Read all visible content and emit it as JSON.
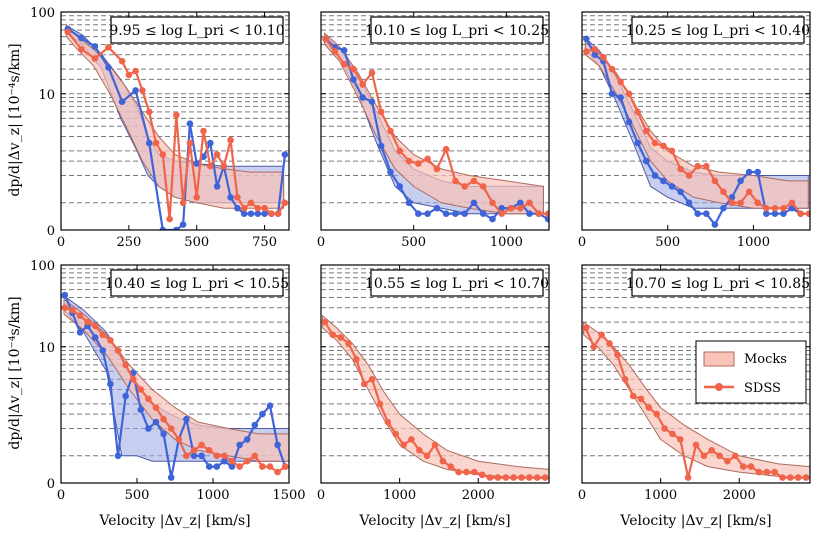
{
  "figure": {
    "ylabel": "dp/d|Δv_z| [10⁻⁴s/km]",
    "xlabel": "Velocity |Δv_z| [km/s]",
    "legend": {
      "entries": [
        {
          "label": "Mocks",
          "color": "#f4a090"
        },
        {
          "label": "SDSS",
          "color": "#f0644a"
        }
      ],
      "placement": "inside middle-right of the bottom-right panel"
    },
    "colors": {
      "sdss": "#f0644a",
      "sdss_fill": "#f4a090",
      "blue_line": "#3f64d8",
      "blue_fill": "#9aa6e3",
      "grid": "#7a7a7a"
    }
  },
  "chart_data": [
    {
      "type": "line",
      "title": "9.95 ≤ log L_pri < 10.10",
      "xlim": [
        0,
        840
      ],
      "xticks": [
        0,
        250,
        500,
        750
      ],
      "xtick_labels": [
        "0",
        "250",
        "500",
        "750"
      ],
      "ylim": [
        0,
        100
      ],
      "yscale": "symlog",
      "yticks": [
        0,
        10,
        100
      ],
      "ytick_labels": [
        "0",
        "10",
        "100"
      ],
      "grid": "horizontal dashed",
      "series": [
        {
          "name": "SDSS",
          "x": [
            25,
            75,
            125,
            175,
            225,
            250,
            275,
            300,
            325,
            350,
            375,
            400,
            425,
            450,
            475,
            500,
            525,
            550,
            575,
            600,
            625,
            650,
            675,
            700,
            725,
            750,
            775,
            800,
            825
          ],
          "y": [
            57,
            35,
            27,
            37,
            25,
            17,
            19,
            11,
            6,
            2.5,
            1.8,
            0.2,
            5.5,
            0.5,
            2.5,
            0.6,
            3.5,
            1.3,
            1.8,
            1.3,
            2.7,
            0.6,
            0.4,
            0.5,
            0.4,
            0.4,
            0.3,
            0.3,
            0.5
          ]
        },
        {
          "name": "",
          "x": [
            25,
            75,
            125,
            175,
            225,
            275,
            325,
            375,
            425,
            450,
            475,
            500,
            525,
            550,
            575,
            600,
            625,
            650,
            675,
            700,
            725,
            750,
            775,
            800,
            825
          ],
          "y": [
            62,
            48,
            38,
            21,
            8,
            11,
            2.5,
            0,
            0,
            0.1,
            4.3,
            1.4,
            1.7,
            2.5,
            0.8,
            1.3,
            0.6,
            0.4,
            0.3,
            0.3,
            0.3,
            0.3,
            0.3,
            0.3,
            1.8
          ]
        }
      ],
      "mocks_band": {
        "x": [
          20,
          60,
          120,
          180,
          240,
          300,
          360,
          420,
          500,
          600,
          700,
          820
        ],
        "lower": [
          50,
          35,
          22,
          10,
          4,
          1.5,
          0.8,
          0.6,
          0.5,
          0.4,
          0.4,
          0.4
        ],
        "upper": [
          70,
          50,
          35,
          22,
          12,
          6,
          3,
          1.8,
          1.4,
          1.2,
          1.1,
          1.1
        ]
      },
      "blue_band": {
        "x": [
          20,
          80,
          150,
          220,
          280,
          320,
          360,
          420,
          500,
          600,
          700,
          820
        ],
        "lower": [
          55,
          40,
          20,
          5,
          2,
          1,
          0.8,
          0.6,
          0.5,
          0.5,
          0.5,
          0.5
        ],
        "upper": [
          68,
          52,
          30,
          15,
          7,
          3,
          1.8,
          1.5,
          1.4,
          1.3,
          1.3,
          1.3
        ]
      }
    },
    {
      "type": "line",
      "title": "10.10 ≤ log L_pri < 10.25",
      "xlim": [
        0,
        1230
      ],
      "xticks": [
        0,
        500,
        1000
      ],
      "xtick_labels": [
        "0",
        "500",
        "1000"
      ],
      "ylim": [
        0,
        100
      ],
      "yscale": "symlog",
      "yticks": [
        0,
        10,
        100
      ],
      "ytick_labels": [],
      "grid": "horizontal dashed",
      "series": [
        {
          "name": "SDSS",
          "x": [
            25,
            75,
            125,
            175,
            225,
            275,
            325,
            375,
            425,
            475,
            525,
            575,
            625,
            675,
            725,
            775,
            825,
            875,
            925,
            975,
            1025,
            1075,
            1125,
            1175,
            1225
          ],
          "y": [
            47,
            33,
            23,
            20,
            13,
            18,
            6,
            3.5,
            2,
            1.5,
            1.4,
            1.6,
            1.2,
            2.1,
            0.9,
            0.8,
            0.9,
            0.8,
            0.5,
            0.3,
            0.4,
            0.4,
            0.5,
            0.3,
            0.3
          ]
        },
        {
          "name": "",
          "x": [
            25,
            75,
            125,
            175,
            225,
            275,
            325,
            375,
            425,
            475,
            525,
            575,
            625,
            675,
            725,
            775,
            825,
            875,
            925,
            975,
            1025,
            1075,
            1125,
            1175,
            1225
          ],
          "y": [
            47,
            37,
            34,
            15,
            9,
            8,
            2.3,
            1.1,
            0.8,
            0.5,
            0.3,
            0.3,
            0.4,
            0.3,
            0.3,
            0.3,
            0.5,
            0.3,
            0.2,
            0.4,
            0.4,
            0.5,
            0.3,
            0.3,
            0.2
          ]
        }
      ],
      "mocks_band": {
        "x": [
          20,
          100,
          200,
          300,
          400,
          500,
          650,
          800,
          1000,
          1200
        ],
        "lower": [
          40,
          25,
          9,
          3,
          1.2,
          0.8,
          0.5,
          0.4,
          0.3,
          0.3
        ],
        "upper": [
          55,
          38,
          18,
          7,
          3,
          1.8,
          1.2,
          1,
          0.9,
          0.8
        ]
      },
      "blue_band": {
        "x": [
          20,
          100,
          200,
          300,
          400,
          500,
          650,
          800,
          1000,
          1200
        ],
        "lower": [
          42,
          28,
          10,
          2.5,
          0.8,
          0.5,
          0.4,
          0.3,
          0.3,
          0.3
        ],
        "upper": [
          52,
          36,
          17,
          6,
          2,
          1.2,
          0.9,
          0.8,
          0.8,
          0.8
        ]
      }
    },
    {
      "type": "line",
      "title": "10.25 ≤ log L_pri < 10.40",
      "xlim": [
        0,
        1330
      ],
      "xticks": [
        0,
        500,
        1000
      ],
      "xtick_labels": [
        "0",
        "500",
        "1000"
      ],
      "ylim": [
        0,
        100
      ],
      "yscale": "symlog",
      "yticks": [
        0,
        10,
        100
      ],
      "ytick_labels": [],
      "grid": "horizontal dashed",
      "series": [
        {
          "name": "SDSS",
          "x": [
            25,
            75,
            125,
            175,
            225,
            275,
            325,
            375,
            425,
            475,
            525,
            575,
            625,
            675,
            725,
            775,
            825,
            875,
            925,
            975,
            1025,
            1075,
            1125,
            1175,
            1225,
            1275,
            1325
          ],
          "y": [
            33,
            35,
            28,
            20,
            14,
            10,
            6,
            3.5,
            2.5,
            2.3,
            2,
            1.2,
            1.0,
            1.3,
            1.3,
            0.9,
            0.7,
            0.5,
            0.5,
            0.7,
            0.5,
            0.4,
            0.4,
            0.4,
            0.5,
            0.3,
            0.3
          ]
        },
        {
          "name": "",
          "x": [
            25,
            75,
            125,
            175,
            225,
            275,
            325,
            375,
            425,
            475,
            525,
            575,
            625,
            675,
            725,
            775,
            825,
            875,
            925,
            975,
            1025,
            1075,
            1125,
            1175,
            1225,
            1275,
            1325
          ],
          "y": [
            47,
            30,
            25,
            10,
            9,
            4.5,
            2.5,
            1.5,
            1.0,
            0.9,
            0.8,
            0.7,
            0.5,
            0.3,
            0.3,
            0.1,
            0.4,
            0.6,
            0.9,
            1.1,
            1.1,
            0.3,
            0.3,
            0.3,
            0.4,
            0.3,
            0.3
          ]
        }
      ],
      "mocks_band": {
        "x": [
          20,
          100,
          200,
          300,
          400,
          500,
          650,
          800,
          1000,
          1200,
          1320
        ],
        "lower": [
          30,
          22,
          10,
          4,
          1.5,
          0.9,
          0.6,
          0.5,
          0.4,
          0.4,
          0.4
        ],
        "upper": [
          42,
          32,
          18,
          8,
          3.5,
          2,
          1.3,
          1.1,
          1,
          0.9,
          0.9
        ]
      },
      "blue_band": {
        "x": [
          20,
          100,
          200,
          300,
          400,
          500,
          650,
          800,
          1000,
          1200,
          1320
        ],
        "lower": [
          35,
          22,
          8,
          2.5,
          0.8,
          0.6,
          0.4,
          0.4,
          0.4,
          0.4,
          0.4
        ],
        "upper": [
          48,
          34,
          16,
          6,
          2.2,
          1.5,
          1.1,
          1,
          1,
          1,
          1
        ]
      }
    },
    {
      "type": "line",
      "title": "10.40 ≤ log L_pri < 10.55",
      "xlim": [
        0,
        1500
      ],
      "xticks": [
        0,
        500,
        1000,
        1500
      ],
      "xtick_labels": [
        "0",
        "500",
        "1000",
        "1500"
      ],
      "ylim": [
        0,
        100
      ],
      "yscale": "symlog",
      "yticks": [
        0,
        10,
        100
      ],
      "ytick_labels": [
        "0",
        "10",
        "100"
      ],
      "grid": "horizontal dashed",
      "series": [
        {
          "name": "SDSS",
          "x": [
            25,
            75,
            125,
            175,
            225,
            275,
            325,
            375,
            425,
            475,
            525,
            575,
            625,
            675,
            725,
            775,
            825,
            875,
            925,
            975,
            1025,
            1075,
            1125,
            1175,
            1225,
            1275,
            1325,
            1375,
            1425,
            1475
          ],
          "y": [
            30,
            28,
            24,
            20,
            18,
            14,
            12,
            9,
            6,
            4,
            3,
            2.3,
            1.8,
            1.3,
            1.0,
            0.8,
            0.5,
            0.6,
            0.7,
            0.6,
            0.5,
            0.5,
            0.4,
            0.3,
            0.4,
            0.5,
            0.3,
            0.3,
            0.2,
            0.3
          ]
        },
        {
          "name": "",
          "x": [
            25,
            75,
            125,
            175,
            225,
            275,
            325,
            375,
            425,
            475,
            525,
            575,
            625,
            675,
            725,
            775,
            825,
            875,
            925,
            975,
            1025,
            1075,
            1125,
            1175,
            1225,
            1275,
            1325,
            1375,
            1425,
            1475
          ],
          "y": [
            43,
            26,
            15,
            18,
            13,
            9,
            3.5,
            0.5,
            2.5,
            4.8,
            1.7,
            1.0,
            1.2,
            0.9,
            0.1,
            0.8,
            1.3,
            0.5,
            0.5,
            0.3,
            0.3,
            0.4,
            0.3,
            0.7,
            0.8,
            1.1,
            1.5,
            1.9,
            0.7,
            0.3
          ]
        }
      ],
      "mocks_band": {
        "x": [
          20,
          150,
          300,
          450,
          600,
          750,
          900,
          1100,
          1300,
          1500
        ],
        "lower": [
          25,
          16,
          8,
          3,
          1.3,
          0.8,
          0.6,
          0.5,
          0.4,
          0.4
        ],
        "upper": [
          38,
          25,
          14,
          6,
          3,
          1.8,
          1.2,
          1,
          0.9,
          0.9
        ]
      },
      "blue_band": {
        "x": [
          20,
          150,
          300,
          400,
          500,
          600,
          750,
          900,
          1100,
          1300,
          1500
        ],
        "lower": [
          28,
          15,
          5,
          0.5,
          0.5,
          0.4,
          0.4,
          0.4,
          0.4,
          0.4,
          0.4
        ],
        "upper": [
          42,
          28,
          15,
          7,
          3.5,
          2,
          1.4,
          1.1,
          1,
          1,
          1
        ]
      }
    },
    {
      "type": "line",
      "title": "10.55 ≤ log L_pri < 10.70",
      "xlim": [
        0,
        2900
      ],
      "xticks": [
        0,
        1000,
        2000
      ],
      "xtick_labels": [
        "0",
        "1000",
        "2000"
      ],
      "ylim": [
        0,
        100
      ],
      "yscale": "symlog",
      "yticks": [
        0,
        10,
        100
      ],
      "ytick_labels": [],
      "grid": "horizontal dashed",
      "series": [
        {
          "name": "SDSS",
          "x": [
            50,
            150,
            250,
            350,
            450,
            550,
            650,
            750,
            850,
            950,
            1050,
            1150,
            1250,
            1350,
            1450,
            1550,
            1650,
            1750,
            1850,
            1950,
            2050,
            2150,
            2250,
            2350,
            2450,
            2550,
            2650,
            2750,
            2850
          ],
          "y": [
            20,
            14,
            13,
            11,
            7,
            3.5,
            4,
            2,
            1.2,
            0.9,
            0.7,
            0.8,
            0.6,
            0.5,
            0.7,
            0.4,
            0.3,
            0.2,
            0.2,
            0.2,
            0.15,
            0.1,
            0.1,
            0.1,
            0.1,
            0.1,
            0.1,
            0.1,
            0.1
          ]
        }
      ],
      "mocks_band": {
        "x": [
          20,
          200,
          400,
          600,
          800,
          1000,
          1300,
          1600,
          2000,
          2500,
          2900
        ],
        "lower": [
          17,
          12,
          7,
          3,
          1.3,
          0.7,
          0.4,
          0.25,
          0.15,
          0.1,
          0.08
        ],
        "upper": [
          24,
          17,
          11,
          6,
          2.8,
          1.5,
          0.9,
          0.6,
          0.4,
          0.3,
          0.25
        ]
      }
    },
    {
      "type": "line",
      "title": "10.70 ≤ log L_pri < 10.85",
      "xlim": [
        0,
        2900
      ],
      "xticks": [
        0,
        1000,
        2000
      ],
      "xtick_labels": [
        "0",
        "1000",
        "2000"
      ],
      "ylim": [
        0,
        100
      ],
      "yscale": "symlog",
      "yticks": [
        0,
        10,
        100
      ],
      "ytick_labels": [],
      "grid": "horizontal dashed",
      "series": [
        {
          "name": "SDSS",
          "x": [
            50,
            150,
            250,
            350,
            450,
            550,
            650,
            750,
            850,
            950,
            1050,
            1150,
            1250,
            1350,
            1450,
            1550,
            1650,
            1750,
            1850,
            1950,
            2050,
            2150,
            2250,
            2350,
            2450,
            2550,
            2650,
            2750,
            2850
          ],
          "y": [
            17,
            10,
            14,
            11,
            8,
            4,
            2.5,
            2.3,
            1.8,
            1.5,
            1.0,
            0.9,
            0.8,
            0.1,
            0.7,
            0.5,
            0.6,
            0.5,
            0.4,
            0.5,
            0.3,
            0.3,
            0.2,
            0.2,
            0.2,
            0.1,
            0.1,
            0.1,
            0.1
          ]
        }
      ],
      "mocks_band": {
        "x": [
          20,
          200,
          400,
          600,
          800,
          1000,
          1300,
          1600,
          2000,
          2500,
          2900
        ],
        "lower": [
          14,
          10,
          6,
          3,
          1.5,
          0.8,
          0.5,
          0.3,
          0.2,
          0.12,
          0.1
        ],
        "upper": [
          20,
          15,
          10,
          6,
          3.2,
          1.8,
          1.1,
          0.8,
          0.5,
          0.35,
          0.3
        ]
      }
    }
  ]
}
